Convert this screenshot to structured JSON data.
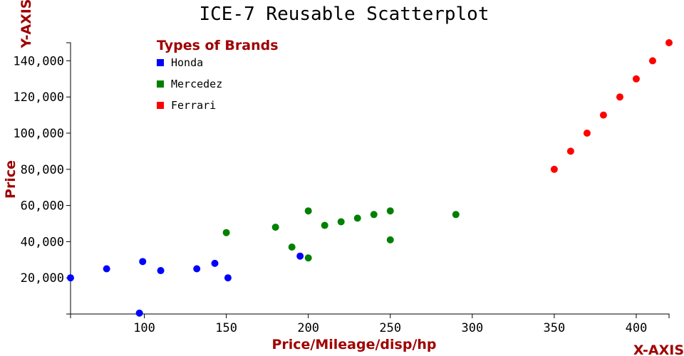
{
  "chart_data": {
    "type": "scatter",
    "title": "ICE-7 Reusable Scatterplot",
    "xlabel": "Price/Mileage/disp/hp",
    "ylabel": "Price",
    "x_corner_label": "X-AXIS",
    "y_corner_label": "Y-AXIS",
    "xlim": [
      55,
      420
    ],
    "ylim": [
      0,
      150000
    ],
    "x_ticks": [
      {
        "value": 100,
        "label": "100"
      },
      {
        "value": 150,
        "label": "150"
      },
      {
        "value": 200,
        "label": "200"
      },
      {
        "value": 250,
        "label": "250"
      },
      {
        "value": 300,
        "label": "300"
      },
      {
        "value": 350,
        "label": "350"
      },
      {
        "value": 400,
        "label": "400"
      }
    ],
    "y_ticks": [
      {
        "value": 20000,
        "label": "20,000"
      },
      {
        "value": 40000,
        "label": "40,000"
      },
      {
        "value": 60000,
        "label": "60,000"
      },
      {
        "value": 80000,
        "label": "80,000"
      },
      {
        "value": 100000,
        "label": "100,000"
      },
      {
        "value": 120000,
        "label": "120,000"
      },
      {
        "value": 140000,
        "label": "140,000"
      }
    ],
    "grid": false,
    "legend": {
      "title": "Types of Brands",
      "placement": "top-left"
    },
    "series": [
      {
        "name": "Honda",
        "color": "#0000ff",
        "points": [
          [
            55,
            20000
          ],
          [
            77,
            25000
          ],
          [
            97,
            500
          ],
          [
            99,
            29000
          ],
          [
            110,
            24000
          ],
          [
            132,
            25000
          ],
          [
            143,
            28000
          ],
          [
            151,
            20000
          ],
          [
            195,
            32000
          ]
        ]
      },
      {
        "name": "Mercedez",
        "color": "#008000",
        "points": [
          [
            150,
            45000
          ],
          [
            180,
            48000
          ],
          [
            190,
            37000
          ],
          [
            200,
            57000
          ],
          [
            200,
            31000
          ],
          [
            210,
            49000
          ],
          [
            220,
            51000
          ],
          [
            230,
            53000
          ],
          [
            240,
            55000
          ],
          [
            250,
            57000
          ],
          [
            250,
            41000
          ],
          [
            290,
            55000
          ]
        ]
      },
      {
        "name": "Ferrari",
        "color": "#ff0000",
        "points": [
          [
            350,
            80000
          ],
          [
            360,
            90000
          ],
          [
            370,
            100000
          ],
          [
            380,
            110000
          ],
          [
            390,
            120000
          ],
          [
            400,
            130000
          ],
          [
            410,
            140000
          ],
          [
            420,
            150000
          ]
        ]
      }
    ]
  }
}
